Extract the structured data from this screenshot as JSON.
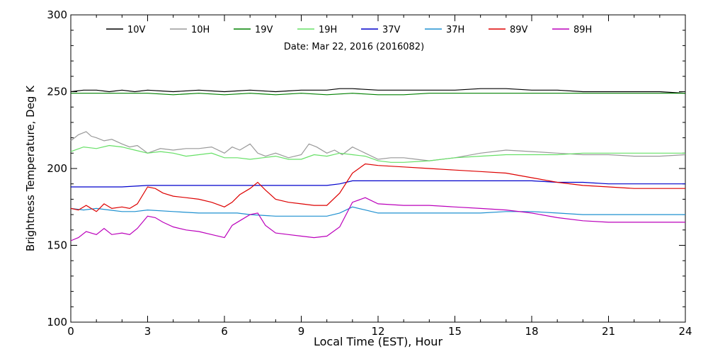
{
  "chart_data": {
    "type": "line",
    "subtitle": "Date: Mar 22, 2016 (2016082)",
    "xlabel": "Local Time (EST), Hour",
    "ylabel": "Brightness Temperature, Deg K",
    "xlim": [
      0,
      24
    ],
    "ylim": [
      100,
      300
    ],
    "xticks": [
      0,
      3,
      6,
      9,
      12,
      15,
      18,
      21,
      24
    ],
    "yticks": [
      100,
      150,
      200,
      250,
      300
    ],
    "grid": false,
    "legend_position": "top",
    "series": [
      {
        "name": "10V",
        "color": "#000000",
        "x": [
          0,
          0.5,
          1,
          1.5,
          2,
          2.5,
          3,
          4,
          5,
          6,
          7,
          8,
          9,
          10,
          10.5,
          11,
          12,
          13,
          14,
          15,
          16,
          17,
          18,
          19,
          20,
          21,
          22,
          23,
          24
        ],
        "y": [
          250,
          251,
          251,
          250,
          251,
          250,
          251,
          250,
          251,
          250,
          251,
          250,
          251,
          251,
          252,
          252,
          251,
          251,
          251,
          251,
          252,
          252,
          251,
          251,
          250,
          250,
          250,
          250,
          249
        ]
      },
      {
        "name": "10H",
        "color": "#999999",
        "x": [
          0,
          0.3,
          0.6,
          0.8,
          1,
          1.3,
          1.6,
          2,
          2.3,
          2.6,
          3,
          3.5,
          4,
          4.5,
          5,
          5.5,
          6,
          6.3,
          6.6,
          7,
          7.3,
          7.6,
          8,
          8.5,
          9,
          9.3,
          9.6,
          10,
          10.3,
          10.6,
          11,
          11.5,
          12,
          12.5,
          13,
          13.5,
          14,
          15,
          16,
          17,
          18,
          19,
          20,
          21,
          22,
          23,
          24
        ],
        "y": [
          218,
          222,
          224,
          221,
          220,
          218,
          219,
          216,
          214,
          215,
          210,
          213,
          212,
          213,
          213,
          214,
          210,
          214,
          212,
          216,
          210,
          208,
          210,
          207,
          209,
          216,
          214,
          210,
          212,
          209,
          214,
          210,
          206,
          207,
          207,
          206,
          205,
          207,
          210,
          212,
          211,
          210,
          209,
          209,
          208,
          208,
          209
        ]
      },
      {
        "name": "19V",
        "color": "#008000",
        "x": [
          0,
          1,
          2,
          3,
          4,
          5,
          6,
          7,
          8,
          9,
          10,
          11,
          12,
          13,
          14,
          15,
          16,
          17,
          18,
          19,
          20,
          21,
          22,
          23,
          24
        ],
        "y": [
          249,
          249,
          249,
          249,
          248,
          249,
          248,
          249,
          248,
          249,
          248,
          249,
          248,
          248,
          249,
          249,
          249,
          249,
          249,
          249,
          249,
          249,
          249,
          249,
          249
        ]
      },
      {
        "name": "19H",
        "color": "#66e066",
        "x": [
          0,
          0.5,
          1,
          1.5,
          2,
          2.5,
          3,
          3.5,
          4,
          4.5,
          5,
          5.5,
          6,
          6.5,
          7,
          7.5,
          8,
          8.5,
          9,
          9.5,
          10,
          10.5,
          11,
          11.5,
          12,
          12.5,
          13,
          14,
          15,
          16,
          17,
          18,
          19,
          20,
          21,
          22,
          23,
          24
        ],
        "y": [
          211,
          214,
          213,
          215,
          214,
          212,
          210,
          211,
          210,
          208,
          209,
          210,
          207,
          207,
          206,
          207,
          208,
          206,
          206,
          209,
          208,
          210,
          209,
          208,
          205,
          204,
          204,
          205,
          207,
          208,
          209,
          209,
          209,
          210,
          210,
          210,
          210,
          210
        ]
      },
      {
        "name": "37V",
        "color": "#0000cc",
        "x": [
          0,
          1,
          2,
          3,
          4,
          5,
          6,
          7,
          8,
          9,
          10,
          10.5,
          11,
          11.5,
          12,
          13,
          14,
          15,
          16,
          17,
          18,
          19,
          20,
          21,
          22,
          23,
          24
        ],
        "y": [
          188,
          188,
          188,
          189,
          189,
          189,
          189,
          189,
          189,
          189,
          189,
          190,
          192,
          192,
          192,
          192,
          192,
          192,
          192,
          192,
          192,
          191,
          191,
          190,
          190,
          190,
          190
        ]
      },
      {
        "name": "37H",
        "color": "#1e90d0",
        "x": [
          0,
          0.5,
          1,
          1.5,
          2,
          2.5,
          3,
          4,
          5,
          6,
          6.5,
          7,
          8,
          9,
          10,
          10.5,
          11,
          11.5,
          12,
          13,
          14,
          15,
          16,
          17,
          18,
          19,
          20,
          21,
          22,
          23,
          24
        ],
        "y": [
          174,
          173,
          174,
          173,
          172,
          172,
          173,
          172,
          171,
          171,
          171,
          170,
          169,
          169,
          169,
          171,
          175,
          173,
          171,
          171,
          171,
          171,
          171,
          172,
          172,
          171,
          170,
          170,
          170,
          170,
          170
        ]
      },
      {
        "name": "89V",
        "color": "#dd0000",
        "x": [
          0,
          0.3,
          0.6,
          1,
          1.3,
          1.6,
          2,
          2.3,
          2.6,
          3,
          3.3,
          3.6,
          4,
          4.5,
          5,
          5.5,
          6,
          6.3,
          6.6,
          7,
          7.3,
          7.6,
          8,
          8.5,
          9,
          9.5,
          10,
          10.5,
          11,
          11.5,
          12,
          13,
          14,
          15,
          16,
          17,
          18,
          19,
          20,
          21,
          22,
          23,
          24
        ],
        "y": [
          174,
          173,
          176,
          172,
          177,
          174,
          175,
          174,
          177,
          188,
          187,
          184,
          182,
          181,
          180,
          178,
          175,
          178,
          183,
          187,
          191,
          186,
          180,
          178,
          177,
          176,
          176,
          184,
          197,
          203,
          202,
          201,
          200,
          199,
          198,
          197,
          194,
          191,
          189,
          188,
          187,
          187,
          187
        ]
      },
      {
        "name": "89H",
        "color": "#bb00bb",
        "x": [
          0,
          0.3,
          0.6,
          1,
          1.3,
          1.6,
          2,
          2.3,
          2.6,
          3,
          3.3,
          3.6,
          4,
          4.5,
          5,
          5.5,
          6,
          6.3,
          6.6,
          7,
          7.3,
          7.6,
          8,
          8.5,
          9,
          9.5,
          10,
          10.5,
          11,
          11.5,
          12,
          13,
          14,
          15,
          16,
          17,
          18,
          19,
          20,
          21,
          22,
          23,
          24
        ],
        "y": [
          153,
          155,
          159,
          157,
          161,
          157,
          158,
          157,
          161,
          169,
          168,
          165,
          162,
          160,
          159,
          157,
          155,
          163,
          166,
          170,
          171,
          163,
          158,
          157,
          156,
          155,
          156,
          162,
          178,
          181,
          177,
          176,
          176,
          175,
          174,
          173,
          171,
          168,
          166,
          165,
          165,
          165,
          165
        ]
      }
    ]
  }
}
